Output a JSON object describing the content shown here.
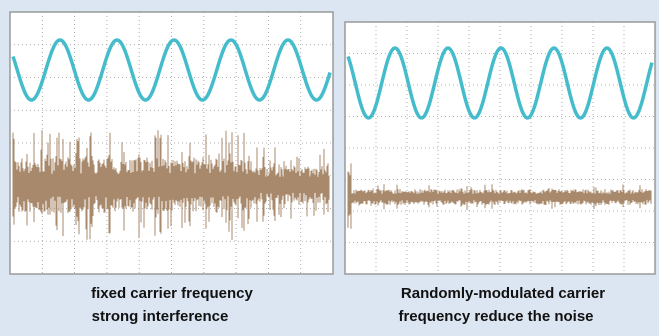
{
  "panels": [
    {
      "caption": [
        "fixed carrier frequency",
        "strong interference"
      ]
    },
    {
      "caption": [
        "Randomly-modulated carrier",
        "frequency reduce the noise"
      ]
    }
  ]
}
